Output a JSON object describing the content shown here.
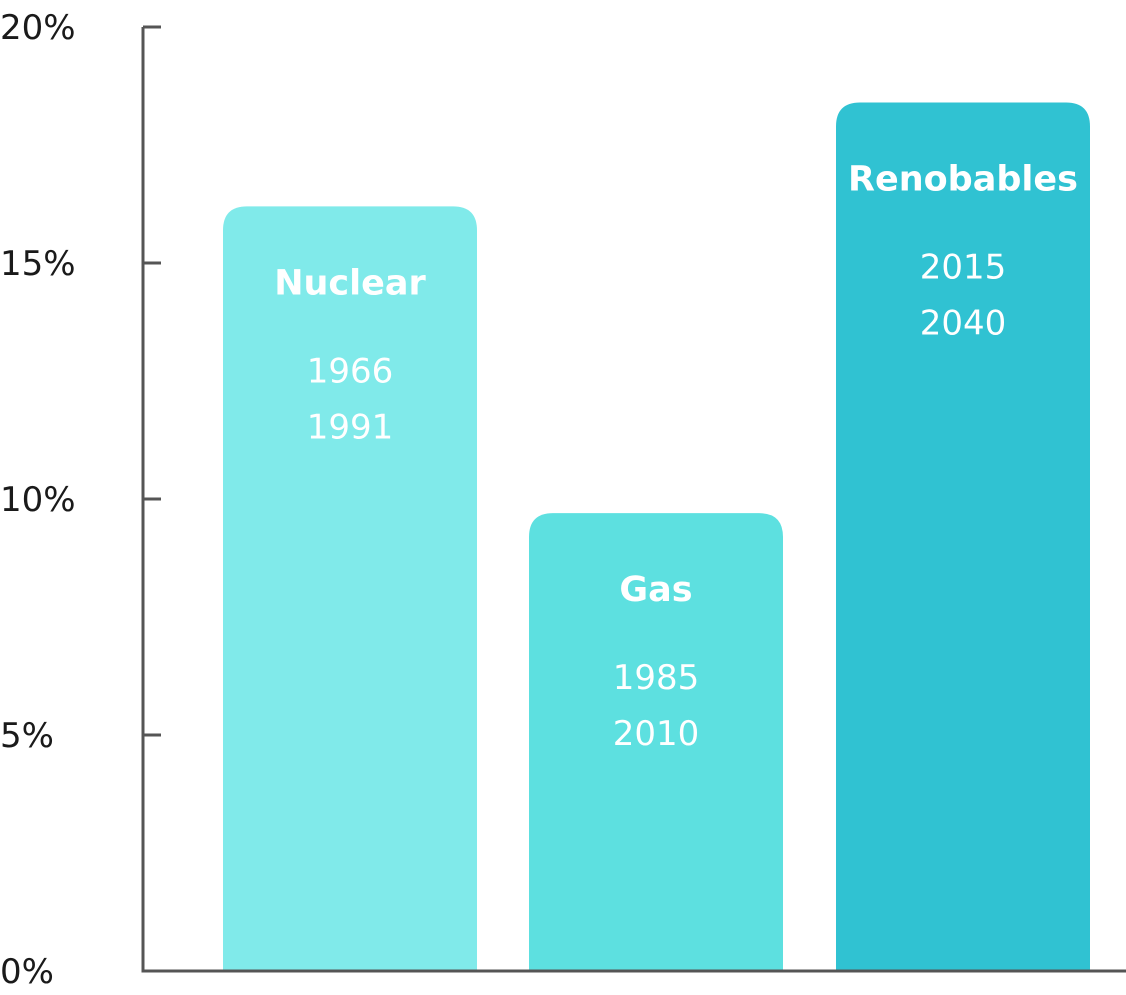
{
  "chart_data": {
    "type": "bar",
    "title": "",
    "xlabel": "",
    "ylabel": "",
    "ylim": [
      0,
      20
    ],
    "y_ticks": [
      0,
      5,
      10,
      15,
      20
    ],
    "y_tick_labels": [
      "0%",
      "5%",
      "10%",
      "15%",
      "20%"
    ],
    "grid": false,
    "legend": "none",
    "bars": [
      {
        "label": "Nuclear",
        "value": 16.2,
        "years": [
          "1966",
          "1991"
        ],
        "color": "#80eaea"
      },
      {
        "label": "Gas",
        "value": 9.7,
        "years": [
          "1985",
          "2010"
        ],
        "color": "#5de0e0"
      },
      {
        "label": "Renobables",
        "value": 18.4,
        "years": [
          "2015",
          "2040"
        ],
        "color": "#30c2d2"
      }
    ],
    "axis_color": "#555555"
  }
}
